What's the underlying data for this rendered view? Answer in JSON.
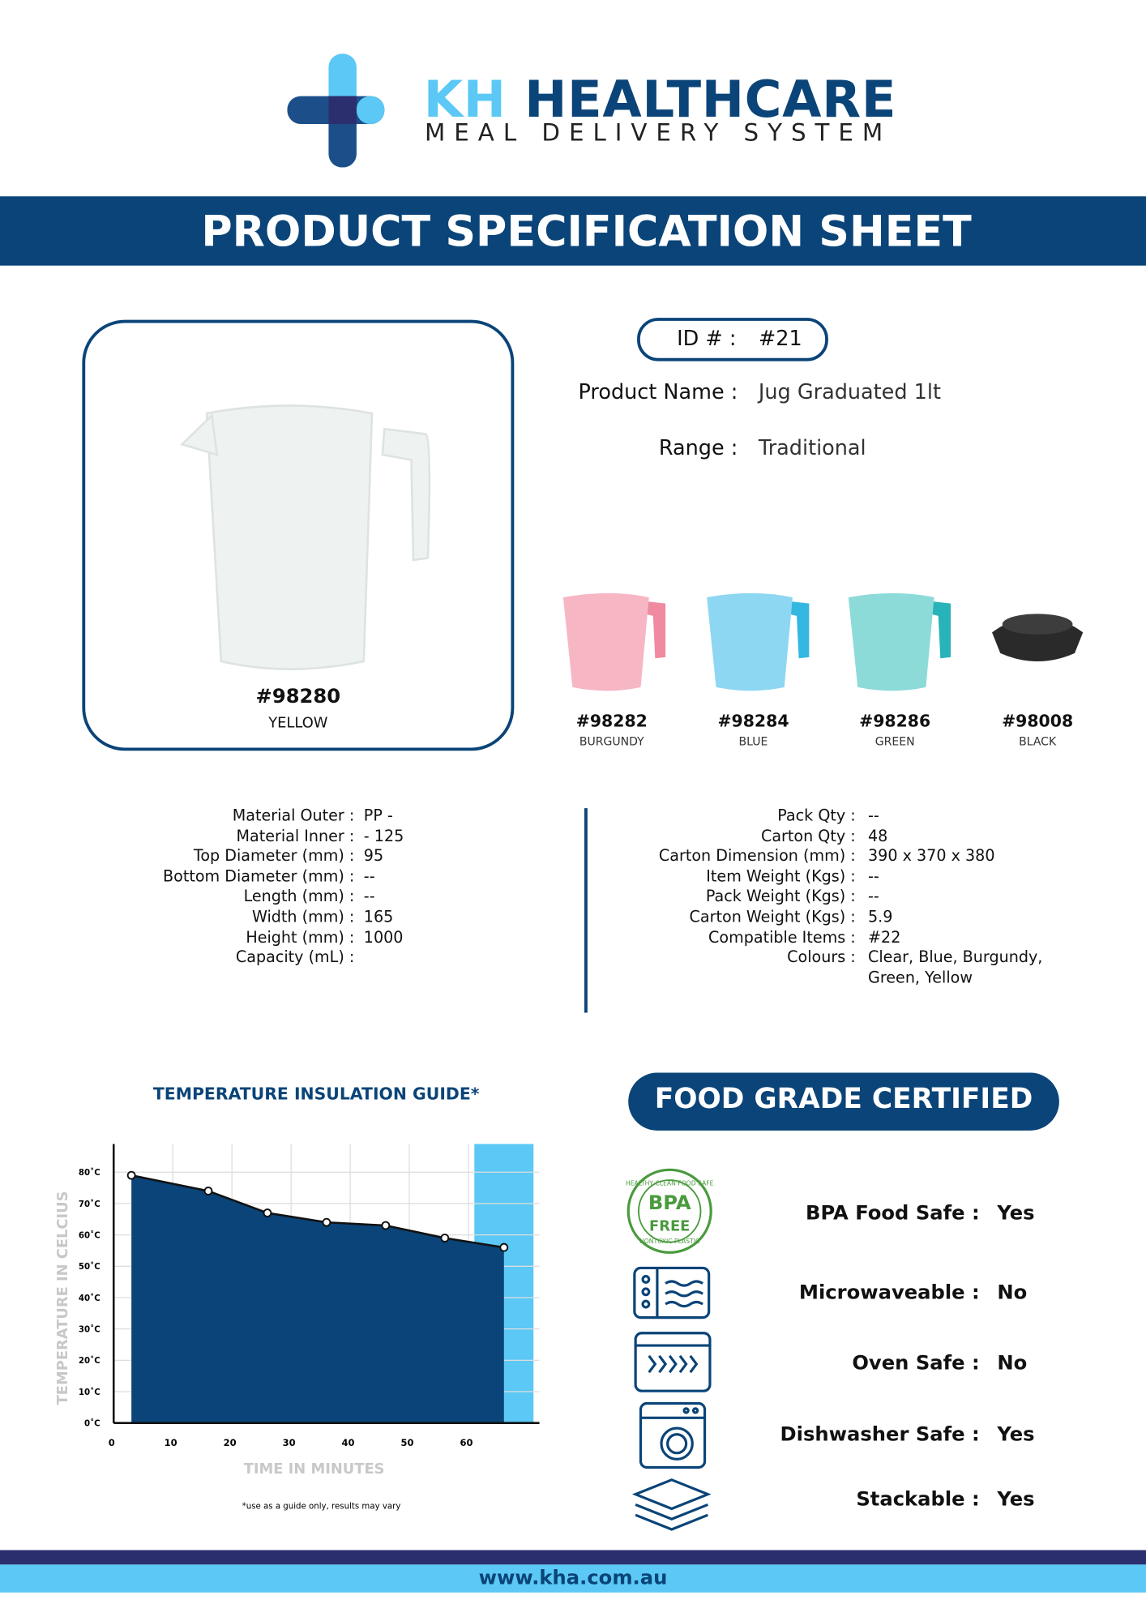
{
  "header": {
    "brand_short": "KH",
    "brand_name": "HEALTHCARE",
    "tagline": "MEAL DELIVERY SYSTEM",
    "banner": "PRODUCT SPECIFICATION SHEET"
  },
  "product": {
    "id_label": "ID # :",
    "id": "#21",
    "name_label": "Product Name :",
    "name": "Jug Graduated 1lt",
    "range_label": "Range :",
    "range": "Traditional",
    "main_code": "#98280",
    "main_colour": "YELLOW",
    "variants": [
      {
        "code": "#98282",
        "colour": "BURGUNDY"
      },
      {
        "code": "#98284",
        "colour": "BLUE"
      },
      {
        "code": "#98286",
        "colour": "GREEN"
      },
      {
        "code": "#98008",
        "colour": "BLACK"
      }
    ]
  },
  "specs": {
    "left": [
      {
        "label": "Material Outer :",
        "value": "PP  -"
      },
      {
        "label": "Material Inner :",
        "value": "-  125"
      },
      {
        "label": "Top Diameter (mm) :",
        "value": "95"
      },
      {
        "label": "Bottom Diameter (mm) :",
        "value": "--"
      },
      {
        "label": "Length (mm) :",
        "value": "--"
      },
      {
        "label": "Width (mm) :",
        "value": "165"
      },
      {
        "label": "Height (mm) :",
        "value": "1000"
      },
      {
        "label": "Capacity (mL) :"
      }
    ],
    "right": [
      {
        "label": "Pack Qty :",
        "value": "--"
      },
      {
        "label": "Carton Qty :",
        "value": "48"
      },
      {
        "label": "Carton Dimension (mm) :",
        "value": "390 x 370 x 380"
      },
      {
        "label": "Item Weight (Kgs) :",
        "value": "--"
      },
      {
        "label": "Pack Weight (Kgs) :",
        "value": "--"
      },
      {
        "label": "Carton Weight (Kgs) :",
        "value": "5.9"
      },
      {
        "label": "Compatible Items :",
        "value": "#22"
      },
      {
        "label": "Colours :",
        "value": "Clear,  Blue,  Burgundy, Green, Yellow"
      }
    ]
  },
  "chart_data": {
    "type": "area",
    "title": "TEMPERATURE INSULATION GUIDE*",
    "x_label": "TIME IN MINUTES",
    "y_label": "TEMPERATURE IN CELCIUS",
    "note": "*use as a guide only, results may vary",
    "x": [
      3,
      16,
      26,
      36,
      46,
      56,
      66
    ],
    "values": [
      79,
      74,
      67,
      64,
      63,
      59,
      56
    ],
    "color": "#0a4478",
    "highlight_range": [
      61,
      71
    ],
    "highlight_color": "#5bc8f5",
    "xlim": [
      0,
      72
    ],
    "ylim": [
      0,
      89
    ],
    "xticks": [
      0,
      10,
      20,
      30,
      40,
      50,
      60
    ],
    "yticks": [
      {
        "value": 0,
        "label": "0˚C"
      },
      {
        "value": 10,
        "label": "10˚C"
      },
      {
        "value": 20,
        "label": "20˚C"
      },
      {
        "value": 30,
        "label": "30˚C"
      },
      {
        "value": 40,
        "label": "40˚C"
      },
      {
        "value": 50,
        "label": "50˚C"
      },
      {
        "value": 60,
        "label": "60˚C"
      },
      {
        "value": 70,
        "label": "70˚C"
      },
      {
        "value": 80,
        "label": "80˚C"
      }
    ],
    "grid": true
  },
  "certification": {
    "title": "FOOD GRADE CERTIFIED",
    "badge": {
      "top": "HEALTHY·CLEAN·FOOD SAFE",
      "main": "BPA",
      "sub": "FREE",
      "bottom": "NONTOXIC PLASTIC"
    },
    "items": [
      {
        "label": "BPA Food Safe :",
        "value": "Yes"
      },
      {
        "label": "Microwaveable :",
        "value": "No"
      },
      {
        "label": "Oven Safe :",
        "value": "No"
      },
      {
        "label": "Dishwasher Safe :",
        "value": "Yes"
      },
      {
        "label": "Stackable :",
        "value": "Yes"
      }
    ]
  },
  "footer": {
    "url": "www.kha.com.au"
  }
}
